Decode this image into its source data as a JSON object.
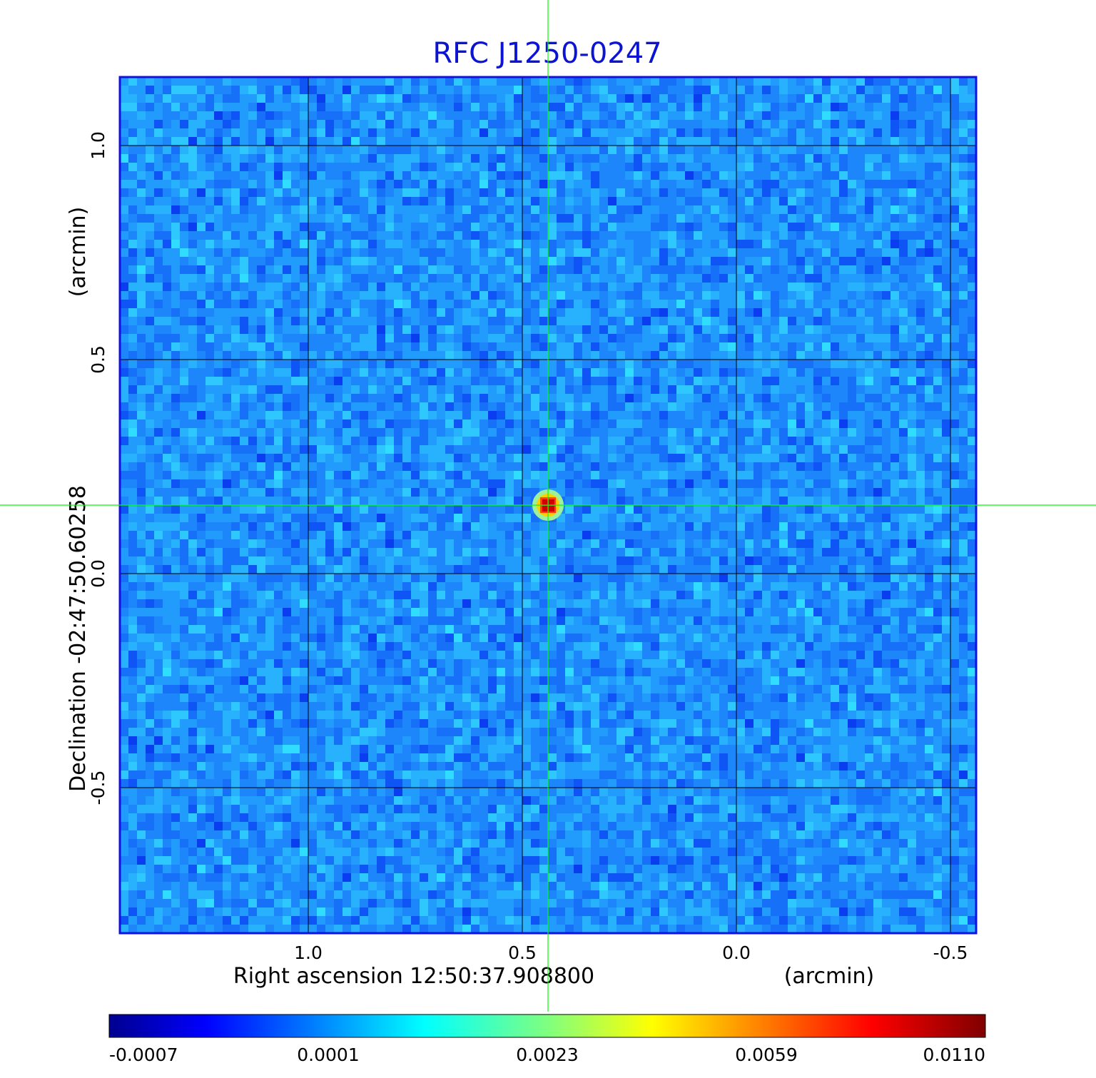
{
  "chart_data": {
    "type": "heatmap",
    "title": "RFC J1250-0247",
    "xlabel": "Right ascension  12:50:37.908800",
    "xlabel_unit": "(arcmin)",
    "ylabel": "Declination  -02:47:50.60258",
    "ylabel_unit": "(arcmin)",
    "x_ticks": [
      "1.0",
      "0.5",
      "0.0",
      "-0.5"
    ],
    "x_tick_values": [
      1.0,
      0.5,
      0.0,
      -0.5
    ],
    "y_ticks": [
      "1.0",
      "0.5",
      "0.0",
      "-0.5"
    ],
    "y_tick_values": [
      1.0,
      0.5,
      0.0,
      -0.5
    ],
    "xlim": [
      1.44,
      -0.56
    ],
    "ylim": [
      -0.84,
      1.16
    ],
    "grid": true,
    "colormap": "jet",
    "colorbar": {
      "placement": "bottom",
      "ticks": [
        "-0.0007",
        "0.0001",
        "0.0023",
        "0.0059",
        "0.0110"
      ],
      "tick_values": [
        -0.0007,
        0.0001,
        0.0023,
        0.0059,
        0.011
      ]
    },
    "crosshair": {
      "x": 0.44,
      "y": 0.16,
      "color": "#00ff00"
    },
    "source_peak": {
      "x": 0.44,
      "y": 0.16,
      "value": 0.011
    }
  }
}
